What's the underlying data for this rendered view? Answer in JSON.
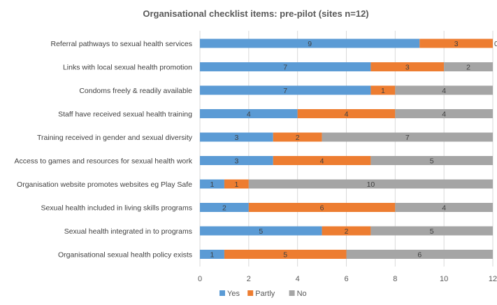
{
  "chart_data": {
    "type": "bar",
    "orientation": "horizontal",
    "stacked": true,
    "title": "Organisational checklist items: pre-pilot (sites n=12)",
    "xlabel": "",
    "ylabel": "",
    "xlim": [
      0,
      12
    ],
    "xticks": [
      0,
      2,
      4,
      6,
      8,
      10,
      12
    ],
    "grid": true,
    "legend_position": "bottom",
    "categories": [
      "Referral pathways to sexual health services",
      "Links with local sexual health promotion",
      "Condoms freely & readily available",
      "Staff have received sexual health training",
      "Training received in gender and sexual diversity",
      "Access to games and resources for sexual health work",
      "Organisation website promotes  websites eg Play Safe",
      "Sexual health included in living skills programs",
      "Sexual health integrated in to programs",
      "Organisational sexual health policy exists"
    ],
    "series": [
      {
        "name": "Yes",
        "color": "#5B9BD5",
        "values": [
          9,
          7,
          7,
          4,
          3,
          3,
          1,
          2,
          5,
          1
        ]
      },
      {
        "name": "Partly",
        "color": "#ED7D31",
        "values": [
          3,
          3,
          1,
          4,
          2,
          4,
          1,
          6,
          2,
          5
        ]
      },
      {
        "name": "No",
        "color": "#A5A5A5",
        "values": [
          0,
          2,
          4,
          4,
          7,
          5,
          10,
          4,
          5,
          6
        ]
      }
    ]
  }
}
